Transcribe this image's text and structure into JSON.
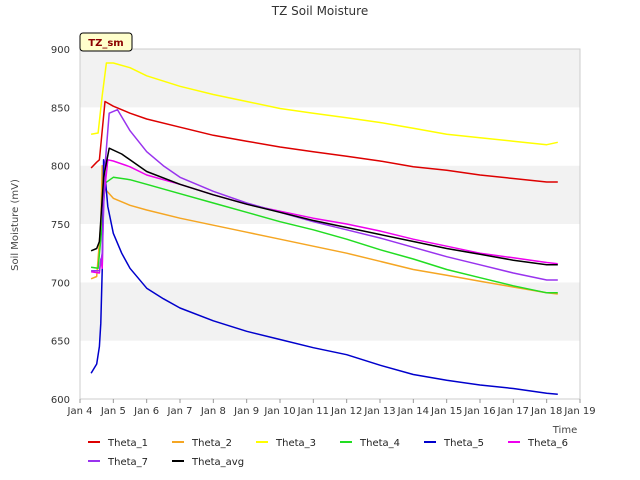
{
  "chart_data": {
    "type": "line",
    "title": "TZ Soil Moisture",
    "xlabel": "Time",
    "ylabel": "Soil Moisture (mV)",
    "badge": "TZ_sm",
    "grid": "horizontal bands",
    "legend_position": "bottom",
    "ylim": [
      600,
      900
    ],
    "yticks": [
      600,
      650,
      700,
      750,
      800,
      850,
      900
    ],
    "xlim": [
      "2024-01-04",
      "2024-01-19"
    ],
    "xticks": [
      {
        "date": "2024-01-04",
        "label": "Jan 4"
      },
      {
        "date": "2024-01-05",
        "label": "Jan 5"
      },
      {
        "date": "2024-01-06",
        "label": "Jan 6"
      },
      {
        "date": "2024-01-07",
        "label": "Jan 7"
      },
      {
        "date": "2024-01-08",
        "label": "Jan 8"
      },
      {
        "date": "2024-01-09",
        "label": "Jan 9"
      },
      {
        "date": "2024-01-10",
        "label": "Jan 10"
      },
      {
        "date": "2024-01-11",
        "label": "Jan 11"
      },
      {
        "date": "2024-01-12",
        "label": "Jan 12"
      },
      {
        "date": "2024-01-13",
        "label": "Jan 13"
      },
      {
        "date": "2024-01-14",
        "label": "Jan 14"
      },
      {
        "date": "2024-01-15",
        "label": "Jan 15"
      },
      {
        "date": "2024-01-16",
        "label": "Jan 16"
      },
      {
        "date": "2024-01-17",
        "label": "Jan 17"
      },
      {
        "date": "2024-01-18",
        "label": "Jan 18"
      },
      {
        "date": "2024-01-19",
        "label": "Jan 19"
      }
    ],
    "series": [
      {
        "name": "Theta_1",
        "color": "#dd0000",
        "points": [
          [
            "2024-01-04 08:00",
            798
          ],
          [
            "2024-01-04 12:00",
            803
          ],
          [
            "2024-01-04 14:00",
            805
          ],
          [
            "2024-01-04 16:00",
            830
          ],
          [
            "2024-01-04 18:00",
            855
          ],
          [
            "2024-01-05 00:00",
            851
          ],
          [
            "2024-01-05 12:00",
            845
          ],
          [
            "2024-01-06 00:00",
            840
          ],
          [
            "2024-01-07 00:00",
            833
          ],
          [
            "2024-01-08 00:00",
            826
          ],
          [
            "2024-01-09 00:00",
            821
          ],
          [
            "2024-01-10 00:00",
            816
          ],
          [
            "2024-01-11 00:00",
            812
          ],
          [
            "2024-01-12 00:00",
            808
          ],
          [
            "2024-01-13 00:00",
            804
          ],
          [
            "2024-01-14 00:00",
            799
          ],
          [
            "2024-01-15 00:00",
            796
          ],
          [
            "2024-01-16 00:00",
            792
          ],
          [
            "2024-01-17 00:00",
            789
          ],
          [
            "2024-01-18 00:00",
            786
          ],
          [
            "2024-01-18 08:00",
            786
          ]
        ]
      },
      {
        "name": "Theta_2",
        "color": "#f5a623",
        "points": [
          [
            "2024-01-04 08:00",
            703
          ],
          [
            "2024-01-04 12:00",
            705
          ],
          [
            "2024-01-04 15:00",
            750
          ],
          [
            "2024-01-04 16:00",
            800
          ],
          [
            "2024-01-04 18:00",
            780
          ],
          [
            "2024-01-05 00:00",
            772
          ],
          [
            "2024-01-05 12:00",
            766
          ],
          [
            "2024-01-06 00:00",
            762
          ],
          [
            "2024-01-07 00:00",
            755
          ],
          [
            "2024-01-08 00:00",
            749
          ],
          [
            "2024-01-09 00:00",
            743
          ],
          [
            "2024-01-10 00:00",
            737
          ],
          [
            "2024-01-11 00:00",
            731
          ],
          [
            "2024-01-12 00:00",
            725
          ],
          [
            "2024-01-13 00:00",
            718
          ],
          [
            "2024-01-14 00:00",
            711
          ],
          [
            "2024-01-15 00:00",
            706
          ],
          [
            "2024-01-16 00:00",
            701
          ],
          [
            "2024-01-17 00:00",
            696
          ],
          [
            "2024-01-18 00:00",
            691
          ],
          [
            "2024-01-18 08:00",
            690
          ]
        ]
      },
      {
        "name": "Theta_3",
        "color": "#ffff00",
        "points": [
          [
            "2024-01-04 08:00",
            827
          ],
          [
            "2024-01-04 13:00",
            828
          ],
          [
            "2024-01-04 16:00",
            860
          ],
          [
            "2024-01-04 19:00",
            888
          ],
          [
            "2024-01-05 00:00",
            888
          ],
          [
            "2024-01-05 12:00",
            884
          ],
          [
            "2024-01-06 00:00",
            877
          ],
          [
            "2024-01-07 00:00",
            868
          ],
          [
            "2024-01-08 00:00",
            861
          ],
          [
            "2024-01-09 00:00",
            855
          ],
          [
            "2024-01-10 00:00",
            849
          ],
          [
            "2024-01-11 00:00",
            845
          ],
          [
            "2024-01-12 00:00",
            841
          ],
          [
            "2024-01-13 00:00",
            837
          ],
          [
            "2024-01-14 00:00",
            832
          ],
          [
            "2024-01-15 00:00",
            827
          ],
          [
            "2024-01-16 00:00",
            824
          ],
          [
            "2024-01-17 00:00",
            821
          ],
          [
            "2024-01-18 00:00",
            818
          ],
          [
            "2024-01-18 08:00",
            820
          ]
        ]
      },
      {
        "name": "Theta_4",
        "color": "#22dd22",
        "points": [
          [
            "2024-01-04 08:00",
            713
          ],
          [
            "2024-01-04 13:00",
            712
          ],
          [
            "2024-01-04 16:00",
            750
          ],
          [
            "2024-01-04 18:00",
            785
          ],
          [
            "2024-01-05 00:00",
            790
          ],
          [
            "2024-01-05 12:00",
            788
          ],
          [
            "2024-01-06 00:00",
            784
          ],
          [
            "2024-01-07 00:00",
            776
          ],
          [
            "2024-01-08 00:00",
            768
          ],
          [
            "2024-01-09 00:00",
            760
          ],
          [
            "2024-01-10 00:00",
            752
          ],
          [
            "2024-01-11 00:00",
            745
          ],
          [
            "2024-01-12 00:00",
            737
          ],
          [
            "2024-01-13 00:00",
            728
          ],
          [
            "2024-01-14 00:00",
            720
          ],
          [
            "2024-01-15 00:00",
            711
          ],
          [
            "2024-01-16 00:00",
            704
          ],
          [
            "2024-01-17 00:00",
            697
          ],
          [
            "2024-01-18 00:00",
            691
          ],
          [
            "2024-01-18 08:00",
            691
          ]
        ]
      },
      {
        "name": "Theta_5",
        "color": "#0000cc",
        "points": [
          [
            "2024-01-04 08:00",
            622
          ],
          [
            "2024-01-04 12:00",
            630
          ],
          [
            "2024-01-04 14:00",
            645
          ],
          [
            "2024-01-04 15:00",
            665
          ],
          [
            "2024-01-04 16:00",
            710
          ],
          [
            "2024-01-04 17:00",
            805
          ],
          [
            "2024-01-04 20:00",
            765
          ],
          [
            "2024-01-05 00:00",
            742
          ],
          [
            "2024-01-05 06:00",
            725
          ],
          [
            "2024-01-05 12:00",
            712
          ],
          [
            "2024-01-06 00:00",
            695
          ],
          [
            "2024-01-06 12:00",
            686
          ],
          [
            "2024-01-07 00:00",
            678
          ],
          [
            "2024-01-08 00:00",
            667
          ],
          [
            "2024-01-09 00:00",
            658
          ],
          [
            "2024-01-10 00:00",
            651
          ],
          [
            "2024-01-11 00:00",
            644
          ],
          [
            "2024-01-12 00:00",
            638
          ],
          [
            "2024-01-13 00:00",
            629
          ],
          [
            "2024-01-14 00:00",
            621
          ],
          [
            "2024-01-15 00:00",
            616
          ],
          [
            "2024-01-16 00:00",
            612
          ],
          [
            "2024-01-17 00:00",
            609
          ],
          [
            "2024-01-18 00:00",
            605
          ],
          [
            "2024-01-18 08:00",
            604
          ]
        ]
      },
      {
        "name": "Theta_6",
        "color": "#ee00ee",
        "points": [
          [
            "2024-01-04 08:00",
            709
          ],
          [
            "2024-01-04 14:00",
            708
          ],
          [
            "2024-01-04 15:00",
            720
          ],
          [
            "2024-01-04 16:00",
            712
          ],
          [
            "2024-01-04 17:00",
            770
          ],
          [
            "2024-01-04 20:00",
            805
          ],
          [
            "2024-01-05 00:00",
            804
          ],
          [
            "2024-01-05 12:00",
            799
          ],
          [
            "2024-01-06 00:00",
            792
          ],
          [
            "2024-01-07 00:00",
            784
          ],
          [
            "2024-01-08 00:00",
            775
          ],
          [
            "2024-01-09 00:00",
            767
          ],
          [
            "2024-01-10 00:00",
            761
          ],
          [
            "2024-01-11 00:00",
            755
          ],
          [
            "2024-01-12 00:00",
            750
          ],
          [
            "2024-01-13 00:00",
            744
          ],
          [
            "2024-01-14 00:00",
            737
          ],
          [
            "2024-01-15 00:00",
            731
          ],
          [
            "2024-01-16 00:00",
            725
          ],
          [
            "2024-01-17 00:00",
            721
          ],
          [
            "2024-01-18 00:00",
            717
          ],
          [
            "2024-01-18 08:00",
            716
          ]
        ]
      },
      {
        "name": "Theta_7",
        "color": "#9933ee",
        "points": [
          [
            "2024-01-04 08:00",
            710
          ],
          [
            "2024-01-04 14:00",
            710
          ],
          [
            "2024-01-04 16:00",
            725
          ],
          [
            "2024-01-04 18:00",
            800
          ],
          [
            "2024-01-04 21:00",
            845
          ],
          [
            "2024-01-05 03:00",
            848
          ],
          [
            "2024-01-05 12:00",
            830
          ],
          [
            "2024-01-06 00:00",
            812
          ],
          [
            "2024-01-06 12:00",
            800
          ],
          [
            "2024-01-07 00:00",
            790
          ],
          [
            "2024-01-08 00:00",
            778
          ],
          [
            "2024-01-09 00:00",
            768
          ],
          [
            "2024-01-10 00:00",
            760
          ],
          [
            "2024-01-11 00:00",
            752
          ],
          [
            "2024-01-12 00:00",
            745
          ],
          [
            "2024-01-13 00:00",
            738
          ],
          [
            "2024-01-14 00:00",
            730
          ],
          [
            "2024-01-15 00:00",
            722
          ],
          [
            "2024-01-16 00:00",
            715
          ],
          [
            "2024-01-17 00:00",
            708
          ],
          [
            "2024-01-18 00:00",
            702
          ],
          [
            "2024-01-18 08:00",
            702
          ]
        ]
      },
      {
        "name": "Theta_avg",
        "color": "#000000",
        "points": [
          [
            "2024-01-04 08:00",
            727
          ],
          [
            "2024-01-04 12:00",
            729
          ],
          [
            "2024-01-04 14:00",
            735
          ],
          [
            "2024-01-04 17:00",
            790
          ],
          [
            "2024-01-04 21:00",
            815
          ],
          [
            "2024-01-05 06:00",
            810
          ],
          [
            "2024-01-06 00:00",
            795
          ],
          [
            "2024-01-07 00:00",
            784
          ],
          [
            "2024-01-08 00:00",
            775
          ],
          [
            "2024-01-09 00:00",
            767
          ],
          [
            "2024-01-10 00:00",
            760
          ],
          [
            "2024-01-11 00:00",
            753
          ],
          [
            "2024-01-12 00:00",
            747
          ],
          [
            "2024-01-13 00:00",
            741
          ],
          [
            "2024-01-14 00:00",
            735
          ],
          [
            "2024-01-15 00:00",
            729
          ],
          [
            "2024-01-16 00:00",
            724
          ],
          [
            "2024-01-17 00:00",
            719
          ],
          [
            "2024-01-18 00:00",
            715
          ],
          [
            "2024-01-18 08:00",
            715
          ]
        ]
      }
    ]
  }
}
